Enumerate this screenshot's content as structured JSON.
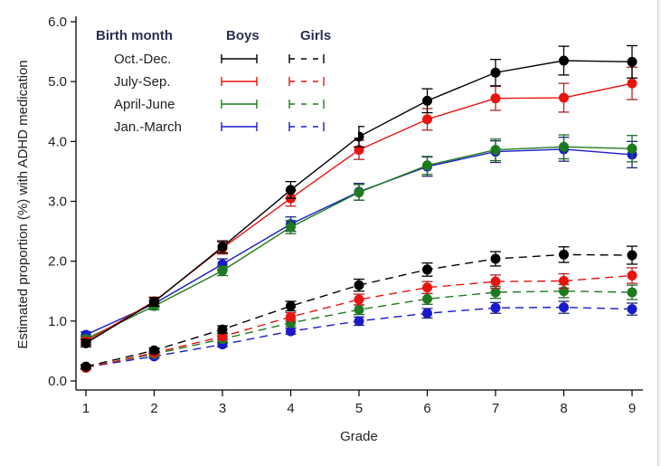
{
  "chart_data": {
    "type": "line",
    "title": "",
    "xlabel": "Grade",
    "ylabel": "Estimated proportion (%) with ADHD medication",
    "x": [
      1,
      2,
      3,
      4,
      5,
      6,
      7,
      8,
      9
    ],
    "x_tick_labels": [
      "1",
      "2",
      "3",
      "4",
      "5",
      "6",
      "7",
      "8",
      "9"
    ],
    "xlim": [
      1,
      9
    ],
    "ylim": [
      0,
      6
    ],
    "y_ticks": [
      0,
      1,
      2,
      3,
      4,
      5,
      6
    ],
    "y_tick_labels": [
      "0.0",
      "1.0",
      "2.0",
      "3.0",
      "4.0",
      "5.0",
      "6.0"
    ],
    "grid": false,
    "legend": {
      "placement": "top-left",
      "header": "Birth month",
      "col_boys": "Boys",
      "col_girls": "Girls",
      "groups": [
        "Oct.-Dec.",
        "July-Sep.",
        "April-June",
        "Jan.-March"
      ]
    },
    "colors": {
      "Oct.-Dec.": "#000000",
      "July-Sep.": "#e8140f",
      "April-June": "#1f7a1f",
      "Jan.-March": "#1a1acc"
    },
    "error_bar_colors": {
      "Oct.-Dec.": "#000000",
      "July-Sep.": "#b0232a",
      "April-June": "#1f6b2a",
      "Jan.-March": "#1f2a70"
    },
    "series": [
      {
        "name": "Boys Oct.-Dec.",
        "group": "Oct.-Dec.",
        "sex": "Boys",
        "style": "solid",
        "values": [
          0.63,
          1.32,
          2.24,
          3.19,
          4.08,
          4.68,
          5.15,
          5.35,
          5.33
        ],
        "err": [
          0.06,
          0.07,
          0.1,
          0.14,
          0.17,
          0.2,
          0.22,
          0.24,
          0.27
        ]
      },
      {
        "name": "Boys July-Sep.",
        "group": "July-Sep.",
        "sex": "Boys",
        "style": "solid",
        "values": [
          0.66,
          1.33,
          2.22,
          3.05,
          3.86,
          4.37,
          4.72,
          4.73,
          4.97
        ],
        "err": [
          0.06,
          0.07,
          0.1,
          0.13,
          0.16,
          0.18,
          0.2,
          0.24,
          0.27
        ]
      },
      {
        "name": "Boys April-June",
        "group": "April-June",
        "sex": "Boys",
        "style": "solid",
        "values": [
          0.7,
          1.25,
          1.84,
          2.57,
          3.15,
          3.6,
          3.86,
          3.91,
          3.88
        ],
        "err": [
          0.05,
          0.06,
          0.08,
          0.11,
          0.13,
          0.15,
          0.18,
          0.2,
          0.22
        ]
      },
      {
        "name": "Boys Jan.-March",
        "group": "Jan.-March",
        "sex": "Boys",
        "style": "solid",
        "values": [
          0.77,
          1.29,
          1.95,
          2.62,
          3.16,
          3.58,
          3.83,
          3.87,
          3.78
        ],
        "err": [
          0.05,
          0.06,
          0.09,
          0.12,
          0.14,
          0.16,
          0.18,
          0.2,
          0.22
        ]
      },
      {
        "name": "Girls Oct.-Dec.",
        "group": "Oct.-Dec.",
        "sex": "Girls",
        "style": "dashed",
        "values": [
          0.24,
          0.51,
          0.86,
          1.25,
          1.6,
          1.86,
          2.04,
          2.11,
          2.1
        ],
        "err": [
          0.03,
          0.04,
          0.06,
          0.08,
          0.1,
          0.11,
          0.12,
          0.13,
          0.15
        ]
      },
      {
        "name": "Girls July-Sep.",
        "group": "July-Sep.",
        "sex": "Girls",
        "style": "dashed",
        "values": [
          0.22,
          0.47,
          0.74,
          1.07,
          1.36,
          1.56,
          1.66,
          1.67,
          1.76
        ],
        "err": [
          0.03,
          0.04,
          0.05,
          0.07,
          0.09,
          0.1,
          0.11,
          0.12,
          0.13
        ]
      },
      {
        "name": "Girls April-June",
        "group": "April-June",
        "sex": "Girls",
        "style": "dashed",
        "values": [
          0.23,
          0.45,
          0.7,
          0.97,
          1.19,
          1.37,
          1.48,
          1.5,
          1.48
        ],
        "err": [
          0.03,
          0.04,
          0.05,
          0.06,
          0.08,
          0.09,
          0.1,
          0.11,
          0.12
        ]
      },
      {
        "name": "Girls Jan.-March",
        "group": "Jan.-March",
        "sex": "Girls",
        "style": "dashed",
        "values": [
          0.23,
          0.41,
          0.61,
          0.83,
          1.0,
          1.13,
          1.22,
          1.23,
          1.2
        ],
        "err": [
          0.03,
          0.03,
          0.04,
          0.05,
          0.07,
          0.08,
          0.09,
          0.1,
          0.1
        ]
      }
    ]
  }
}
